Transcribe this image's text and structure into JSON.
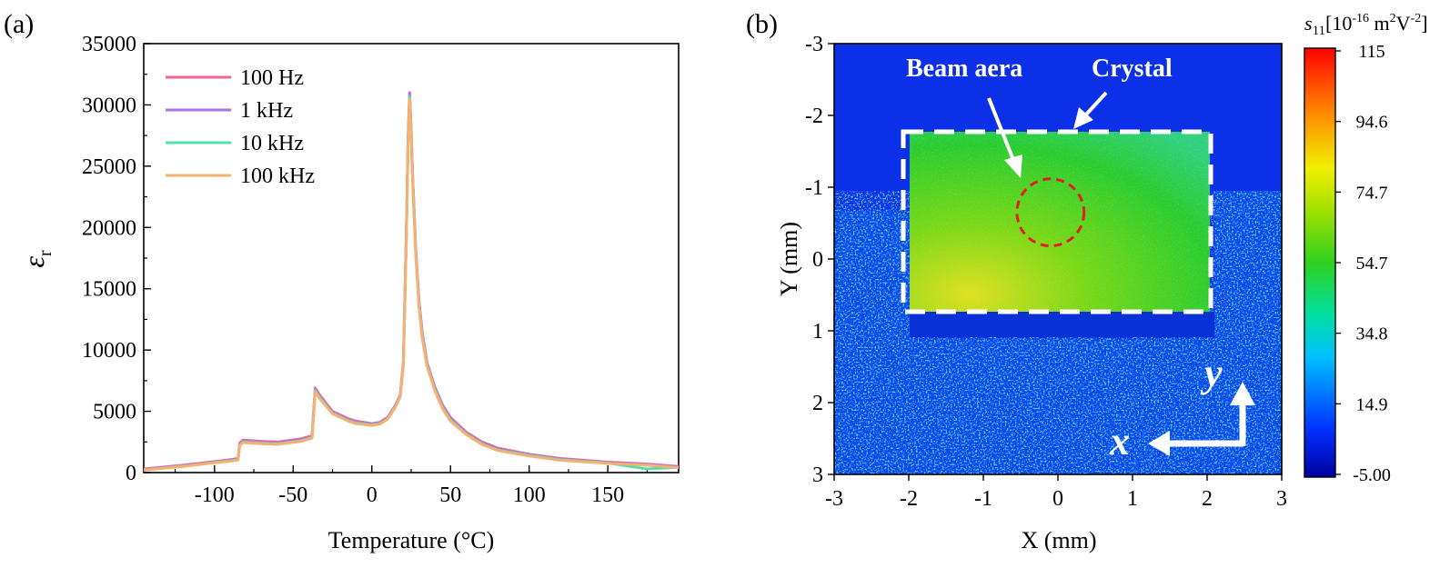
{
  "chart_data": [
    {
      "type": "line",
      "panel_label": "(a)",
      "xlabel": "Temperature (°C)",
      "ylabel_symbol": "ε",
      "ylabel_subscript": "r",
      "xlim": [
        -145,
        195
      ],
      "ylim": [
        0,
        35000
      ],
      "xticks": [
        -100,
        -50,
        0,
        50,
        100,
        150
      ],
      "yticks": [
        0,
        5000,
        10000,
        15000,
        20000,
        25000,
        30000,
        35000
      ],
      "legend_position": "top-left",
      "x": [
        -145,
        -120,
        -100,
        -90,
        -85,
        -84,
        -82,
        -70,
        -60,
        -45,
        -38,
        -36,
        -33,
        -25,
        -15,
        -10,
        0,
        5,
        10,
        15,
        18,
        20,
        22,
        23,
        24,
        25,
        26,
        28,
        30,
        32,
        35,
        40,
        45,
        50,
        60,
        70,
        80,
        100,
        120,
        150,
        175,
        195
      ],
      "series": [
        {
          "name": "100 Hz",
          "color": "#f0649a",
          "values": [
            300,
            600,
            900,
            1050,
            1150,
            2400,
            2650,
            2550,
            2500,
            2750,
            3000,
            6900,
            6300,
            5000,
            4400,
            4200,
            4000,
            4100,
            4500,
            5500,
            6300,
            9000,
            20000,
            27000,
            31000,
            28000,
            24000,
            18000,
            14000,
            11500,
            9000,
            7000,
            5500,
            4500,
            3300,
            2500,
            2000,
            1500,
            1150,
            850,
            700,
            500
          ]
        },
        {
          "name": "1 kHz",
          "color": "#b070e8",
          "values": [
            250,
            550,
            850,
            1000,
            1100,
            2300,
            2550,
            2450,
            2400,
            2650,
            2900,
            6800,
            6200,
            4900,
            4300,
            4100,
            3950,
            4050,
            4450,
            5450,
            6250,
            8900,
            19800,
            26800,
            30900,
            27900,
            23900,
            17900,
            13900,
            11400,
            8900,
            6900,
            5400,
            4400,
            3200,
            2400,
            1900,
            1450,
            1100,
            800,
            650,
            450
          ]
        },
        {
          "name": "10 kHz",
          "color": "#50e0b0",
          "values": [
            220,
            520,
            820,
            960,
            1060,
            2250,
            2500,
            2400,
            2350,
            2600,
            2850,
            6700,
            6100,
            4850,
            4250,
            4050,
            3900,
            4000,
            4400,
            5400,
            6200,
            8800,
            19600,
            26600,
            30700,
            27700,
            23700,
            17700,
            13700,
            11200,
            8800,
            6800,
            5300,
            4300,
            3150,
            2350,
            1850,
            1400,
            1050,
            780,
            300,
            420
          ]
        },
        {
          "name": "100 kHz",
          "color": "#f8b070",
          "values": [
            200,
            500,
            800,
            930,
            1030,
            2200,
            2450,
            2350,
            2300,
            2550,
            2800,
            6600,
            6000,
            4800,
            4200,
            4000,
            3850,
            3950,
            4350,
            5350,
            6150,
            8700,
            19400,
            26400,
            30500,
            27500,
            23500,
            17500,
            13500,
            11000,
            8700,
            6700,
            5200,
            4200,
            3100,
            2300,
            1800,
            1350,
            1000,
            750,
            600,
            400
          ]
        }
      ]
    },
    {
      "type": "heatmap",
      "panel_label": "(b)",
      "xlabel": "X (mm)",
      "ylabel": "Y (mm)",
      "xlim": [
        -3,
        3
      ],
      "ylim": [
        -3,
        3
      ],
      "y_axis_inverted": true,
      "xticks": [
        -3,
        -2,
        -1,
        0,
        1,
        2,
        3
      ],
      "yticks": [
        -3,
        -2,
        -1,
        0,
        1,
        2,
        3
      ],
      "colorbar": {
        "title_symbol": "s",
        "title_subscript": "11",
        "title_rest": "[10",
        "exp1": "-16",
        "unit_m": " m",
        "exp2": "2",
        "unit_v": "V",
        "exp3": "-2",
        "close": "]",
        "ticks": [
          "115",
          "94.6",
          "74.7",
          "54.7",
          "34.8",
          "14.9",
          "-5.00"
        ],
        "range": [
          -5.0,
          115
        ]
      },
      "crystal_region_mm": {
        "x": [
          -2.0,
          1.8
        ],
        "y": [
          -1.8,
          0.7
        ]
      },
      "beam_center_mm": [
        -0.1,
        -0.65
      ],
      "beam_radius_mm": 0.45,
      "annotations": {
        "beam": "Beam aera",
        "crystal": "Crystal",
        "axis_x": "x",
        "axis_y": "y"
      }
    }
  ]
}
